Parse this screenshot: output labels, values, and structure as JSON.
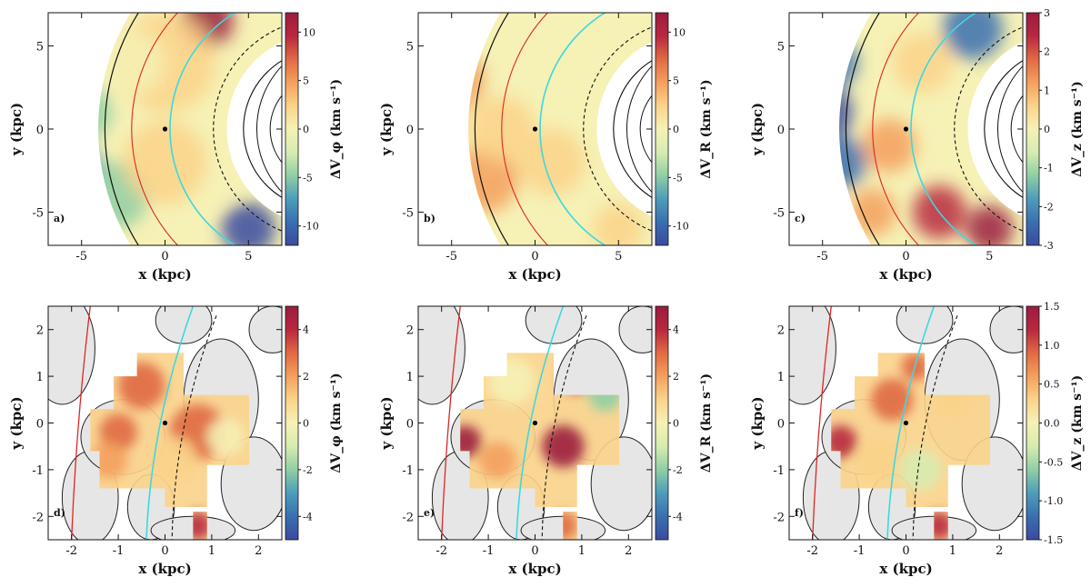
{
  "colors": {
    "spectral": [
      "#3b4aa0",
      "#3a6fb0",
      "#4d9dbb",
      "#8fcfa4",
      "#d7ecb0",
      "#f6f1b5",
      "#fbd38a",
      "#f4a05e",
      "#e06a44",
      "#b8283f",
      "#9b1c3f"
    ],
    "contour_fill": "#e6e6e6",
    "red_arm": "#e02525",
    "cyan_arm": "#3dd8e0",
    "arc_line": "#111111"
  },
  "chart_data": [
    {
      "type": "heatmap",
      "panel_label": "a)",
      "xlabel": "x (kpc)",
      "ylabel": "y (kpc)",
      "xlim": [
        -7,
        7
      ],
      "ylim": [
        -7,
        7
      ],
      "xticks": [
        -5,
        0,
        5
      ],
      "yticks": [
        -5,
        0,
        5
      ],
      "colorbar": {
        "label": "ΔV_φ  (km s⁻¹)",
        "range": [
          -12,
          12
        ],
        "ticks": [
          10,
          5,
          0,
          -5,
          -10
        ]
      }
    },
    {
      "type": "heatmap",
      "panel_label": "b)",
      "xlabel": "x (kpc)",
      "ylabel": "y (kpc)",
      "xlim": [
        -7,
        7
      ],
      "ylim": [
        -7,
        7
      ],
      "xticks": [
        -5,
        0,
        5
      ],
      "yticks": [
        -5,
        0,
        5
      ],
      "colorbar": {
        "label": "ΔV_R  (km s⁻¹)",
        "range": [
          -12,
          12
        ],
        "ticks": [
          10,
          5,
          0,
          -5,
          -10
        ]
      }
    },
    {
      "type": "heatmap",
      "panel_label": "c)",
      "xlabel": "x (kpc)",
      "ylabel": "y (kpc)",
      "xlim": [
        -7,
        7
      ],
      "ylim": [
        -7,
        7
      ],
      "xticks": [
        -5,
        0,
        5
      ],
      "yticks": [
        -5,
        0,
        5
      ],
      "colorbar": {
        "label": "ΔV_z  (km s⁻¹)",
        "range": [
          -3,
          3
        ],
        "ticks": [
          3,
          2,
          1,
          0,
          -1,
          -2,
          -3
        ]
      }
    },
    {
      "type": "heatmap",
      "panel_label": "d)",
      "xlabel": "x (kpc)",
      "ylabel": "y (kpc)",
      "xlim": [
        -2.5,
        2.5
      ],
      "ylim": [
        -2.5,
        2.5
      ],
      "xticks": [
        -2,
        -1,
        0,
        1,
        2
      ],
      "yticks": [
        -2,
        -1,
        0,
        1,
        2
      ],
      "colorbar": {
        "label": "ΔV_φ  (km s⁻¹)",
        "range": [
          -5,
          5
        ],
        "ticks": [
          4,
          2,
          0,
          -2,
          -4
        ]
      }
    },
    {
      "type": "heatmap",
      "panel_label": "e)",
      "xlabel": "x (kpc)",
      "ylabel": "y (kpc)",
      "xlim": [
        -2.5,
        2.5
      ],
      "ylim": [
        -2.5,
        2.5
      ],
      "xticks": [
        -2,
        -1,
        0,
        1,
        2
      ],
      "yticks": [
        -2,
        -1,
        0,
        1,
        2
      ],
      "colorbar": {
        "label": "ΔV_R  (km s⁻¹)",
        "range": [
          -5,
          5
        ],
        "ticks": [
          4,
          2,
          0,
          -2,
          -4
        ]
      }
    },
    {
      "type": "heatmap",
      "panel_label": "f)",
      "xlabel": "x (kpc)",
      "ylabel": "y (kpc)",
      "xlim": [
        -2.5,
        2.5
      ],
      "ylim": [
        -2.5,
        2.5
      ],
      "xticks": [
        -2,
        -1,
        0,
        1,
        2
      ],
      "yticks": [
        -2,
        -1,
        0,
        1,
        2
      ],
      "colorbar": {
        "label": "ΔV_z  (km s⁻¹)",
        "range": [
          -1.5,
          1.5
        ],
        "ticks": [
          1.5,
          1.0,
          0.5,
          0.0,
          -0.5,
          -1.0,
          -1.5
        ]
      }
    }
  ]
}
